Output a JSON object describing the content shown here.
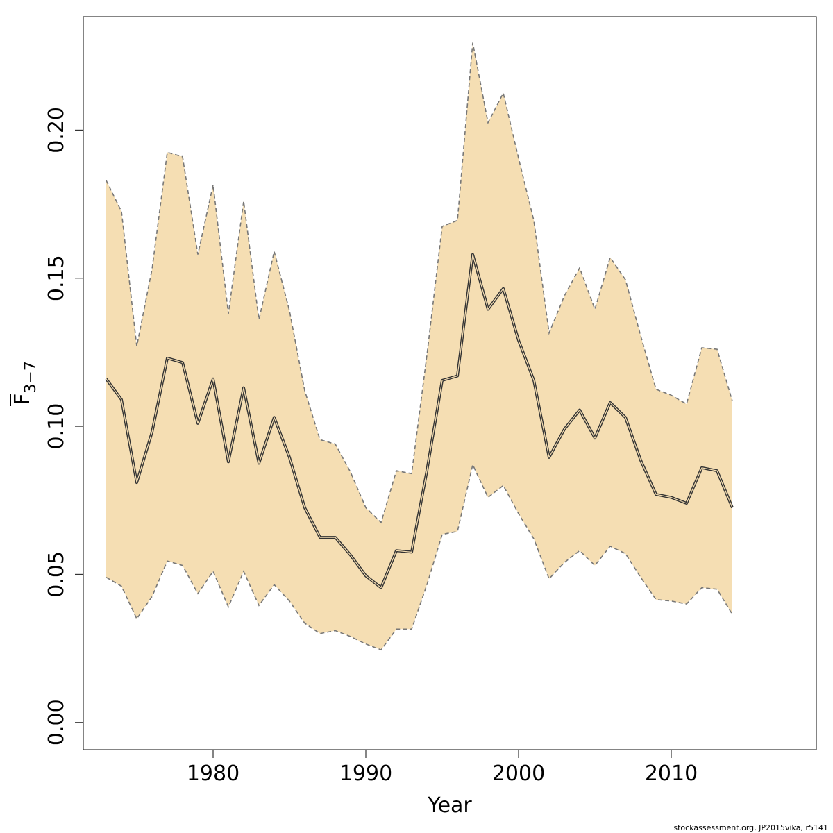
{
  "chart_data": {
    "type": "area",
    "xlabel": "Year",
    "ylabel": "F",
    "ylabel_subscript": "3−7",
    "xlim": [
      1971.5,
      2019.5
    ],
    "ylim": [
      -0.0092,
      0.2383
    ],
    "x_ticks": [
      1980,
      1990,
      2000,
      2010
    ],
    "x_tick_labels": [
      "1980",
      "1990",
      "2000",
      "2010"
    ],
    "y_ticks": [
      0.0,
      0.05,
      0.1,
      0.15,
      0.2
    ],
    "y_tick_labels": [
      "0.00",
      "0.05",
      "0.10",
      "0.15",
      "0.20"
    ],
    "grid": false,
    "band_color": "#F5DEB3",
    "line_color": "#333333",
    "bound_color": "#777777",
    "x": [
      1973,
      1974,
      1975,
      1976,
      1977,
      1978,
      1979,
      1980,
      1981,
      1982,
      1983,
      1984,
      1985,
      1986,
      1987,
      1988,
      1989,
      1990,
      1991,
      1992,
      1993,
      1994,
      1995,
      1996,
      1997,
      1998,
      1999,
      2000,
      2001,
      2002,
      2003,
      2004,
      2005,
      2006,
      2007,
      2008,
      2009,
      2010,
      2011,
      2012,
      2013,
      2014
    ],
    "series": [
      {
        "role": "estimate",
        "values": [
          0.116,
          0.109,
          0.081,
          0.098,
          0.123,
          0.1215,
          0.101,
          0.116,
          0.088,
          0.113,
          0.0875,
          0.103,
          0.0895,
          0.0725,
          0.0625,
          0.0625,
          0.0565,
          0.0495,
          0.0455,
          0.058,
          0.0575,
          0.085,
          0.1155,
          0.117,
          0.158,
          0.1395,
          0.1465,
          0.129,
          0.1155,
          0.0895,
          0.099,
          0.1055,
          0.096,
          0.108,
          0.103,
          0.0885,
          0.077,
          0.076,
          0.074,
          0.086,
          0.085,
          0.0725
        ]
      },
      {
        "role": "upper",
        "values": [
          0.183,
          0.1725,
          0.127,
          0.153,
          0.1925,
          0.191,
          0.158,
          0.1815,
          0.138,
          0.176,
          0.136,
          0.159,
          0.139,
          0.112,
          0.0955,
          0.094,
          0.0845,
          0.0725,
          0.0675,
          0.085,
          0.084,
          0.124,
          0.1675,
          0.1695,
          0.2295,
          0.2025,
          0.2125,
          0.1905,
          0.1695,
          0.1315,
          0.144,
          0.1535,
          0.1395,
          0.157,
          0.1495,
          0.1305,
          0.1125,
          0.1105,
          0.1075,
          0.1265,
          0.126,
          0.1085
        ]
      },
      {
        "role": "lower",
        "values": [
          0.049,
          0.046,
          0.035,
          0.0425,
          0.0545,
          0.053,
          0.0435,
          0.051,
          0.039,
          0.051,
          0.0395,
          0.0465,
          0.041,
          0.0335,
          0.03,
          0.031,
          0.029,
          0.0265,
          0.0245,
          0.0315,
          0.0315,
          0.0465,
          0.0635,
          0.0645,
          0.087,
          0.076,
          0.08,
          0.0705,
          0.062,
          0.0485,
          0.054,
          0.058,
          0.053,
          0.0595,
          0.057,
          0.049,
          0.0415,
          0.041,
          0.04,
          0.0455,
          0.045,
          0.0365
        ]
      }
    ]
  },
  "credit": "stockassessment.org, JP2015vika, r5141"
}
